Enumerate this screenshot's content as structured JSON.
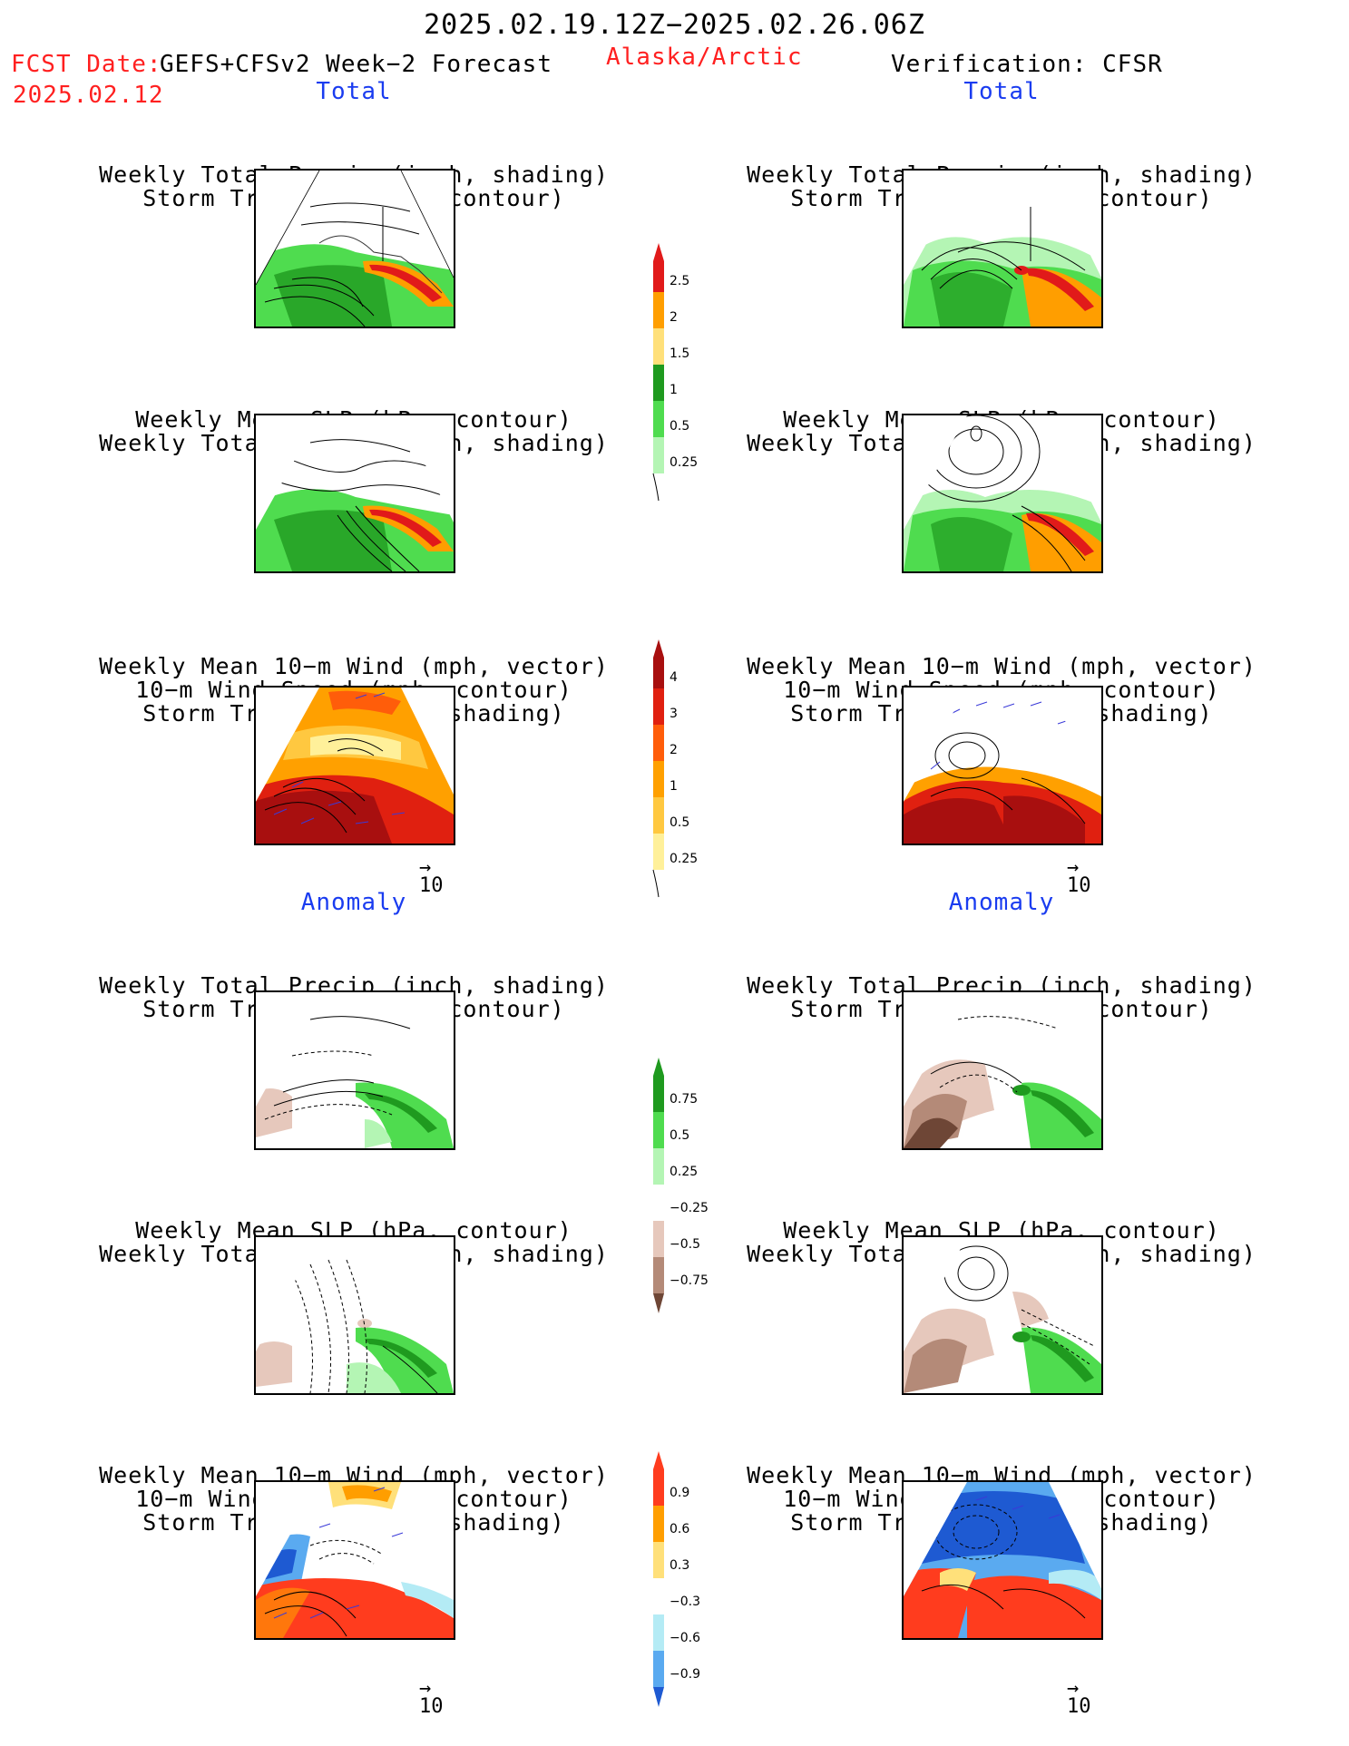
{
  "header": {
    "title": "2025.02.19.12Z−2025.02.26.06Z",
    "fcst_label": "FCST Date:",
    "fcst_model": "GEFS+CFSv2 Week−2 Forecast",
    "fcst_date": "2025.02.12",
    "region": "Alaska/Arctic",
    "verification": "Verification: CFSR"
  },
  "sections": {
    "total": "Total",
    "anomaly": "Anomaly"
  },
  "panels": {
    "precip_track": [
      "Weekly Total Precip (inch, shading)",
      "Storm Track Density (contour)"
    ],
    "slp_precip": [
      "Weekly Mean SLP (hPa, contour)",
      "Weekly Total Precip (inch, shading)"
    ],
    "wind_track": [
      "Weekly Mean 10−m Wind (mph, vector)",
      "10−m Wind Speed (mph, contour)",
      "Storm Track Density (shading)"
    ]
  },
  "vector_ref": "10",
  "colorbars": {
    "precip_total": {
      "labels": [
        "2.5",
        "2",
        "1.5",
        "1",
        "0.5",
        "0.25"
      ],
      "colors": [
        "#e11a1a",
        "#ff9e00",
        "#ffe07a",
        "#1f9a1f",
        "#4fdc4f",
        "#b4f5b4"
      ]
    },
    "track_total": {
      "labels": [
        "4",
        "3",
        "2",
        "1",
        "0.5",
        "0.25"
      ],
      "colors": [
        "#a80f0f",
        "#e02010",
        "#ff5d0a",
        "#ffa000",
        "#ffc840",
        "#fff09a",
        "#ffffc8"
      ]
    },
    "precip_anom": {
      "labels": [
        "0.75",
        "0.5",
        "0.25",
        "−0.25",
        "−0.5",
        "−0.75"
      ],
      "colors": [
        "#1f9a1f",
        "#4fdc4f",
        "#b4f5b4",
        "#ffffff",
        "#e6c8bc",
        "#b48a78",
        "#6e4636"
      ]
    },
    "track_anom": {
      "labels": [
        "0.9",
        "0.6",
        "0.3",
        "−0.3",
        "−0.6",
        "−0.9"
      ],
      "colors": [
        "#ff3c1e",
        "#ff9e00",
        "#ffe07a",
        "#ffffff",
        "#b4ebf5",
        "#5aaaf0",
        "#1e5ad2"
      ]
    }
  }
}
